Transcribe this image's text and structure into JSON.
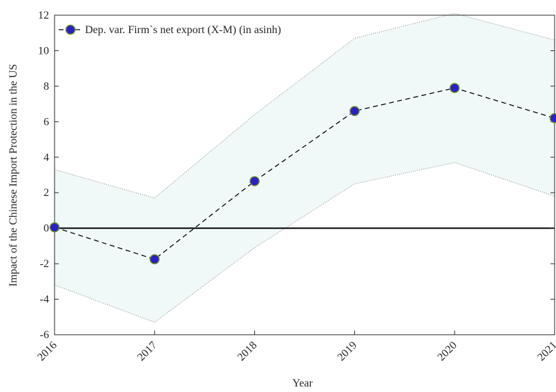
{
  "chart_data": {
    "type": "line",
    "x_label": "Year",
    "y_label": "Impact of the Chinese Import Protection in the US",
    "x": [
      2016,
      2017,
      2018,
      2019,
      2020,
      2021
    ],
    "series": [
      {
        "name": "Dep. var. Firm`s net export (X-M) (in asinh)",
        "color": "#2b1fc8",
        "edge_color": "#6b8e23",
        "values": [
          0.05,
          -1.75,
          2.65,
          6.6,
          7.9,
          6.2
        ]
      }
    ],
    "upper": [
      3.3,
      1.7,
      6.4,
      10.7,
      12.1,
      10.6
    ],
    "lower": [
      -3.2,
      -5.3,
      -1.1,
      2.5,
      3.7,
      1.8
    ],
    "band_color": "#f0f8f8",
    "hline": 0,
    "xlim": [
      2016,
      2021
    ],
    "xticks": [
      2016,
      2017,
      2018,
      2019,
      2020,
      2021
    ],
    "ylim": [
      -6,
      12
    ],
    "yticks": [
      -6,
      -4,
      -2,
      0,
      2,
      4,
      6,
      8,
      10,
      12
    ],
    "legend": "upper-left"
  }
}
